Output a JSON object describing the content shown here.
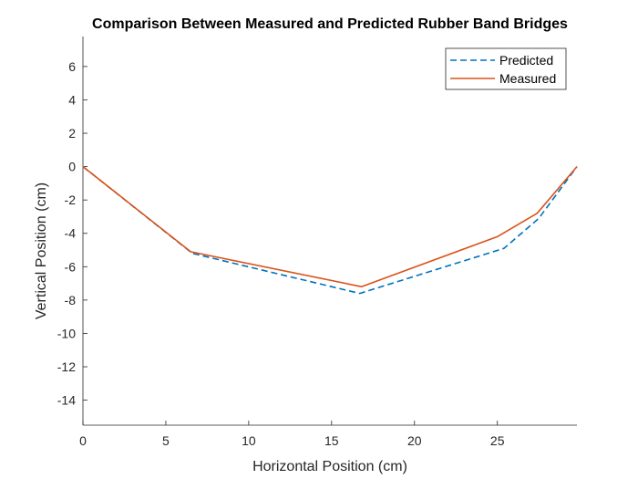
{
  "chart_data": {
    "type": "line",
    "title": "Comparison Between Measured and Predicted Rubber Band Bridges",
    "xlabel": "Horizontal Position (cm)",
    "ylabel": "Vertical Position (cm)",
    "xlim": [
      0,
      29.8
    ],
    "ylim": [
      -15.5,
      7.8
    ],
    "xticks": [
      0,
      5,
      10,
      15,
      20,
      25
    ],
    "yticks": [
      6,
      4,
      2,
      0,
      -2,
      -4,
      -6,
      -8,
      -10,
      -12,
      -14
    ],
    "grid": false,
    "legend_position": "top-right",
    "series": [
      {
        "name": "Predicted",
        "style": "dashed",
        "color": "#0072BD",
        "x": [
          0,
          6.6,
          16.7,
          25.4,
          27.5,
          29.8
        ],
        "y": [
          0,
          -5.2,
          -7.6,
          -4.9,
          -3.1,
          0
        ]
      },
      {
        "name": "Measured",
        "style": "solid",
        "color": "#D95319",
        "x": [
          0,
          6.5,
          16.8,
          25.0,
          27.4,
          29.8
        ],
        "y": [
          0,
          -5.1,
          -7.2,
          -4.2,
          -2.8,
          0
        ]
      }
    ]
  }
}
